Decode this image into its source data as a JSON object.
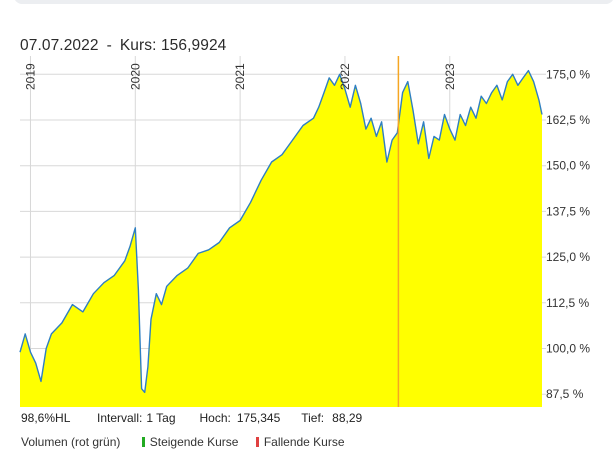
{
  "hover": {
    "date": "07.07.2022",
    "sep": "-",
    "price_label": "Kurs:",
    "price_value": "156,9924"
  },
  "stats": {
    "hl": "98,6%HL",
    "interval_label": "Intervall:",
    "interval_value": "1 Tag",
    "high_label": "Hoch:",
    "high_value": "175,345",
    "low_label": "Tief:",
    "low_value": "88,29"
  },
  "legend": {
    "volume": "Volumen (rot grün)",
    "rising": "Steigende Kurse",
    "falling": "Fallende Kurse"
  },
  "colors": {
    "area_fill": "#ffff00",
    "line": "#2f7fc1",
    "crosshair": "#f5a623",
    "rising": "#22aa22",
    "falling": "#e04040",
    "grid": "#d8d8d8"
  },
  "chart_data": {
    "type": "area",
    "ylim": [
      84,
      180
    ],
    "xlim": [
      2018.9,
      2023.88
    ],
    "y_ticks": [
      87.5,
      100,
      112.5,
      125,
      137.5,
      150,
      162.5,
      175
    ],
    "y_tick_labels": [
      "87,5 %",
      "100,0 %",
      "112,5 %",
      "125,0 %",
      "137,5 %",
      "150,0 %",
      "162,5 %",
      "175,0 %"
    ],
    "years": [
      {
        "x": 2019.0,
        "label": "2019"
      },
      {
        "x": 2020.0,
        "label": "2020"
      },
      {
        "x": 2021.0,
        "label": "2021"
      },
      {
        "x": 2022.0,
        "label": "2022"
      },
      {
        "x": 2023.0,
        "label": "2023"
      }
    ],
    "crosshair_x": 2022.51,
    "grid": true,
    "x": [
      2018.9,
      2018.95,
      2019.0,
      2019.05,
      2019.1,
      2019.15,
      2019.2,
      2019.3,
      2019.4,
      2019.5,
      2019.6,
      2019.7,
      2019.8,
      2019.9,
      2019.95,
      2020.0,
      2020.03,
      2020.06,
      2020.09,
      2020.12,
      2020.15,
      2020.2,
      2020.25,
      2020.3,
      2020.4,
      2020.5,
      2020.6,
      2020.7,
      2020.8,
      2020.9,
      2021.0,
      2021.1,
      2021.2,
      2021.3,
      2021.4,
      2021.5,
      2021.6,
      2021.7,
      2021.75,
      2021.8,
      2021.85,
      2021.9,
      2021.95,
      2022.0,
      2022.05,
      2022.1,
      2022.15,
      2022.2,
      2022.25,
      2022.3,
      2022.35,
      2022.4,
      2022.45,
      2022.5,
      2022.55,
      2022.6,
      2022.65,
      2022.7,
      2022.75,
      2022.8,
      2022.85,
      2022.9,
      2022.95,
      2023.0,
      2023.05,
      2023.1,
      2023.15,
      2023.2,
      2023.25,
      2023.3,
      2023.35,
      2023.4,
      2023.45,
      2023.5,
      2023.55,
      2023.6,
      2023.65,
      2023.7,
      2023.75,
      2023.8,
      2023.85,
      2023.88
    ],
    "y": [
      99,
      104,
      99,
      96,
      91,
      100,
      104,
      107,
      112,
      110,
      115,
      118,
      120,
      124,
      128,
      133,
      116,
      89,
      88,
      95,
      108,
      115,
      112,
      117,
      120,
      122,
      126,
      127,
      129,
      133,
      135,
      140,
      146,
      151,
      153,
      157,
      161,
      163,
      166,
      170,
      174,
      172,
      175,
      171,
      166,
      172,
      167,
      160,
      163,
      158,
      162,
      151,
      157,
      159,
      170,
      173,
      165,
      156,
      162,
      152,
      158,
      157,
      164,
      160,
      157,
      164,
      161,
      166,
      163,
      169,
      167,
      170,
      172,
      168,
      173,
      175,
      172,
      174,
      176,
      173,
      168,
      164
    ]
  }
}
